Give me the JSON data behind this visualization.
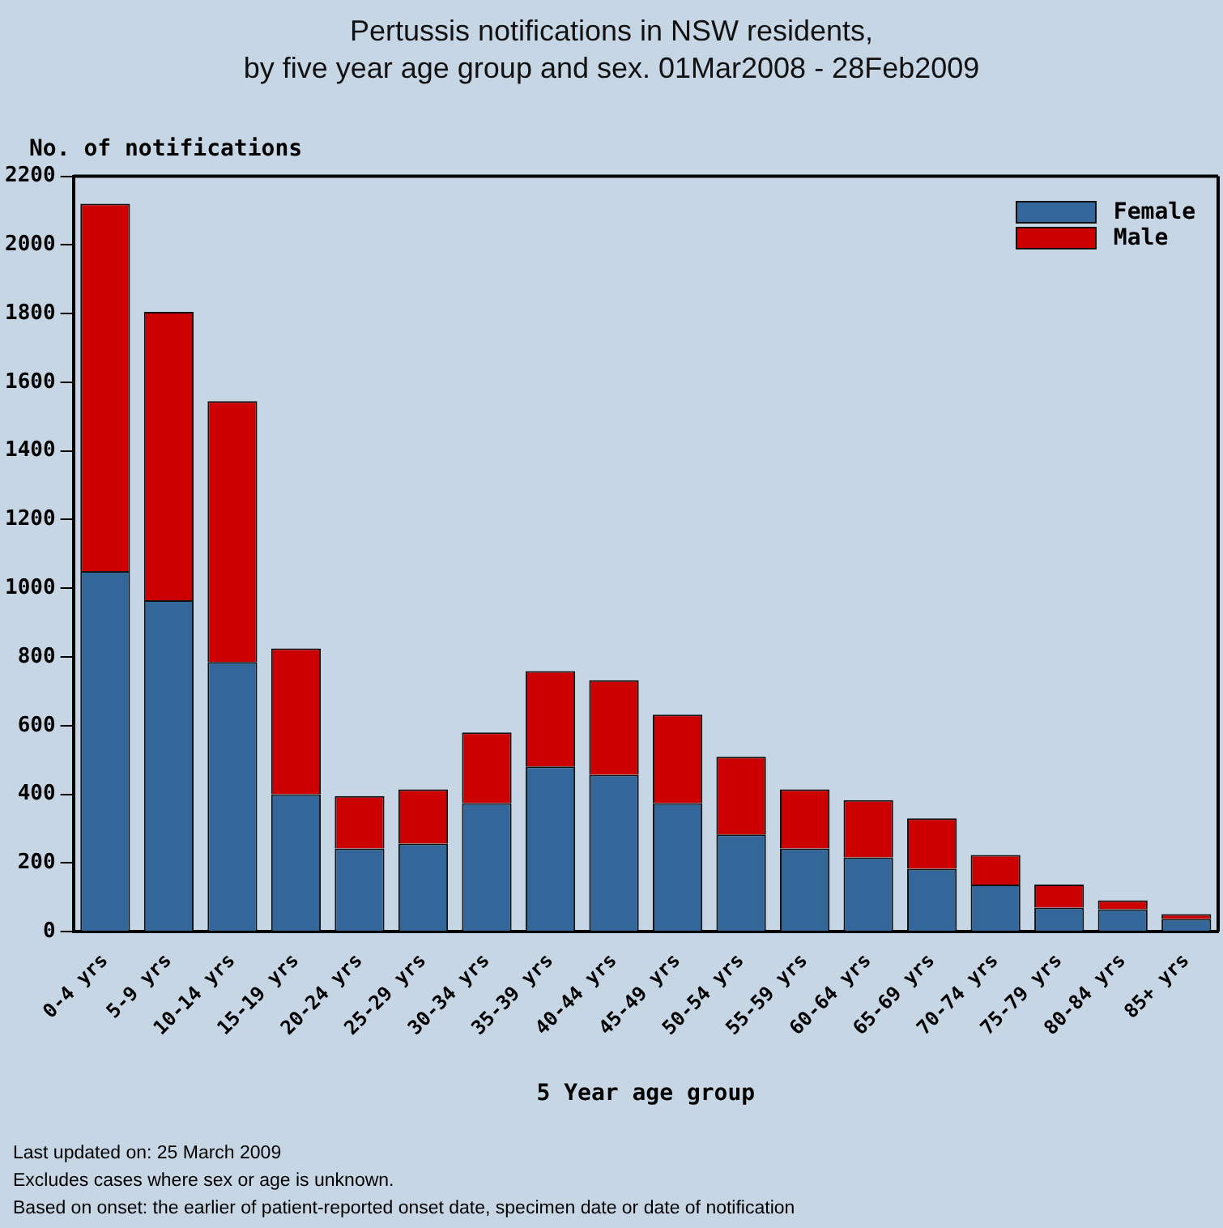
{
  "chart_data": {
    "type": "bar",
    "title": "Pertussis notifications in NSW residents,\nby five year age group and sex. 01Mar2008 - 28Feb2009",
    "xlabel": "5 Year age group",
    "ylabel": "No. of notifications",
    "categories": [
      "0-4 yrs",
      "5-9 yrs",
      "10-14 yrs",
      "15-19 yrs",
      "20-24 yrs",
      "25-29 yrs",
      "30-34 yrs",
      "35-39 yrs",
      "40-44 yrs",
      "45-49 yrs",
      "50-54 yrs",
      "55-59 yrs",
      "60-64 yrs",
      "65-69 yrs",
      "70-74 yrs",
      "75-79 yrs",
      "80-84 yrs",
      "85+ yrs"
    ],
    "series": [
      {
        "name": "Female",
        "color": "#336699",
        "values": [
          1050,
          965,
          785,
          400,
          242,
          256,
          374,
          481,
          457,
          374,
          283,
          242,
          216,
          183,
          137,
          70,
          65,
          37
        ]
      },
      {
        "name": "Male",
        "color": "#cc0000",
        "values": [
          1070,
          840,
          760,
          425,
          153,
          158,
          206,
          278,
          275,
          258,
          226,
          172,
          167,
          147,
          86,
          67,
          26,
          14
        ]
      }
    ],
    "stacked": true,
    "ylim": [
      0,
      2200
    ],
    "yticks": [
      0,
      200,
      400,
      600,
      800,
      1000,
      1200,
      1400,
      1600,
      1800,
      2000,
      2200
    ],
    "legend": "top right",
    "annotations": [
      "Last updated on: 25 March 2009",
      "Excludes cases where sex or age is unknown.",
      "Based on onset: the earlier of patient-reported onset date, specimen date or date of notification"
    ]
  }
}
